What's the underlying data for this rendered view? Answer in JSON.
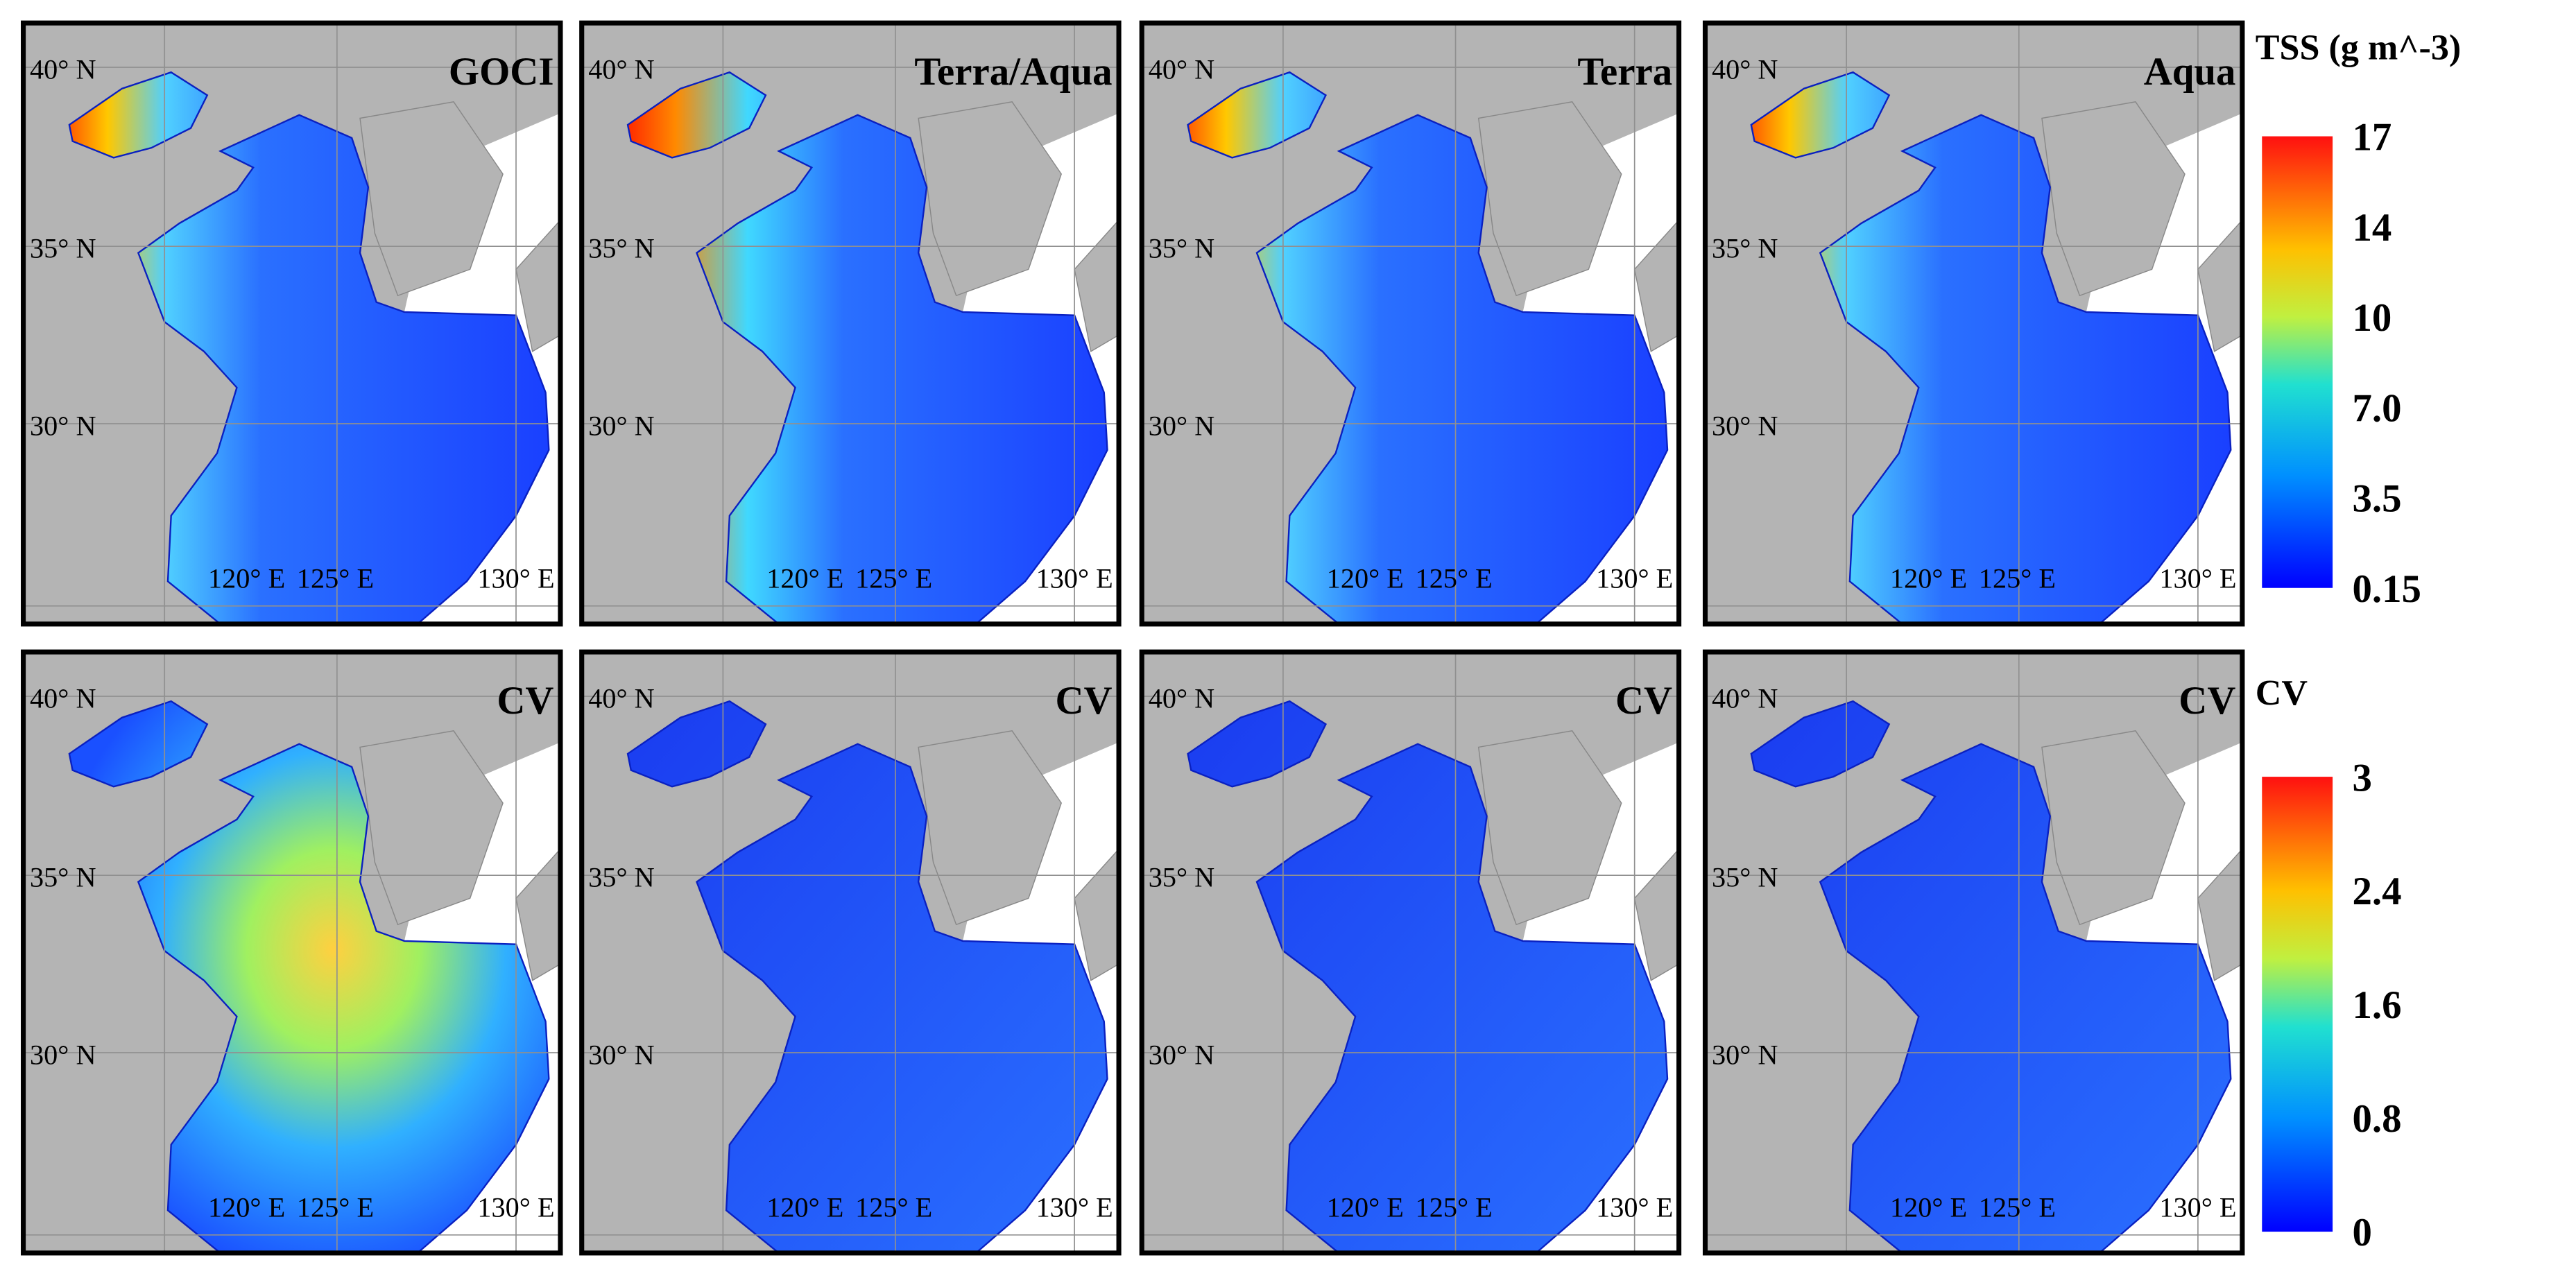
{
  "grid_labels": {
    "lat": [
      "40° N",
      "35° N",
      "30° N"
    ],
    "lon": [
      "120° E",
      "125° E",
      "130° E"
    ]
  },
  "rows": [
    {
      "panels": [
        "GOCI",
        "Terra/Aqua",
        "Terra",
        "Aqua"
      ],
      "colorbar": {
        "title": "TSS (g m^-3)",
        "ticks": [
          "17",
          "14",
          "10",
          "7.0",
          "3.5",
          "0.15"
        ]
      }
    },
    {
      "panels": [
        "CV",
        "CV",
        "CV",
        "CV"
      ],
      "colorbar": {
        "title": "CV",
        "ticks": [
          "3",
          "2.4",
          "1.6",
          "0.8",
          "0"
        ]
      }
    }
  ]
}
